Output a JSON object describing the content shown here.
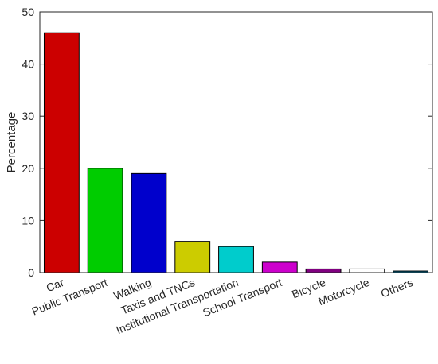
{
  "chart_data": {
    "type": "bar",
    "title": "",
    "xlabel": "",
    "ylabel": "Percentage",
    "ylim": [
      0,
      50
    ],
    "yticks": [
      0,
      10,
      20,
      30,
      40,
      50
    ],
    "grid": false,
    "categories": [
      "Car",
      "Public Transport",
      "Walking",
      "Taxis and TNCs",
      "Institutional Transportation",
      "School Transport",
      "Bicycle",
      "Motorcycle",
      "Others"
    ],
    "values": [
      46,
      20,
      19,
      6,
      5,
      2,
      0.7,
      0.7,
      0.3
    ],
    "colors": [
      "#cc0000",
      "#00cc00",
      "#0000cc",
      "#cccc00",
      "#00cccc",
      "#cc00cc",
      "#800080",
      "#ffffff",
      "#006080"
    ]
  }
}
